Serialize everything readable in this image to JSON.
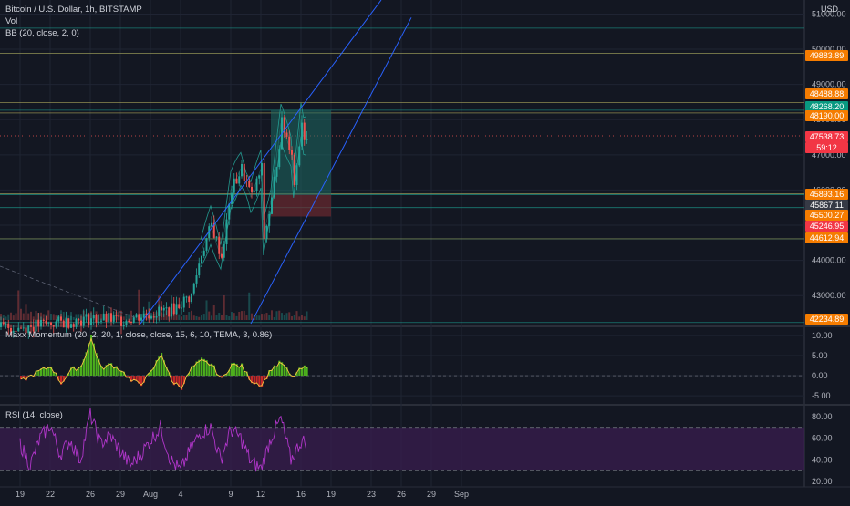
{
  "main_legend": {
    "symbol": "Bitcoin / U.S. Dollar, 1h, BITSTAMP",
    "volume": "Vol",
    "bollinger": "BB (20, close, 2, 0)"
  },
  "currency": "USD",
  "countdown": "59:12",
  "colors": {
    "background": "#131722",
    "grid": "#1f2433",
    "up": "#26a69a",
    "down": "#ef5350",
    "channel": "#2962ff",
    "teal_line": "#1c9b8e",
    "orange_level": "#ef8b27",
    "long_profit": "#1e6a63",
    "long_loss": "#6b2a2f",
    "momentum_up": "#4caf1d",
    "momentum_down": "#c62828",
    "momentum_line": "#f5c842",
    "rsi_line": "#b036c9",
    "rsi_band": "#3a1e4f"
  },
  "price_tags": [
    {
      "label": "49883.89",
      "color": "#f57c00"
    },
    {
      "label": "48488.88",
      "color": "#f57c00"
    },
    {
      "label": "48268.20",
      "color": "#089981"
    },
    {
      "label": "48190.00",
      "color": "#f57c00"
    },
    {
      "label": "47538.73",
      "color": "#f23645"
    },
    {
      "label": "45893.16",
      "color": "#f57c00"
    },
    {
      "label": "45867.11",
      "color": "#363a45"
    },
    {
      "label": "45500.27",
      "color": "#f57c00"
    },
    {
      "label": "45246.95",
      "color": "#f23645"
    },
    {
      "label": "44612.94",
      "color": "#f57c00"
    },
    {
      "label": "42234.89",
      "color": "#f57c00"
    }
  ],
  "momentum_legend": "Maxx Momentum (20, 2, 20, 1, close, close, 15, 6, 10, TEMA, 3, 0.86)",
  "rsi_legend": "RSI (14, close)",
  "chart_data": [
    {
      "type": "candlestick",
      "title": "Bitcoin / U.S. Dollar, 1h, BITSTAMP",
      "ylabel": "USD",
      "y_ticks": [
        "51000.00",
        "50000.00",
        "49000.00",
        "48000.00",
        "47000.00",
        "46000.00",
        "45000.00",
        "44000.00",
        "43000.00"
      ],
      "x_ticks": [
        "19",
        "22",
        "26",
        "29",
        "Aug",
        "4",
        "9",
        "12",
        "16",
        "19",
        "23",
        "26",
        "29",
        "Sep"
      ],
      "ylim": [
        42150,
        51400
      ],
      "last_price": 47538.73,
      "horizontal_levels": [
        50600,
        49883.89,
        48488.88,
        48268.2,
        48190.0,
        45893.16,
        45867.11,
        45500.27,
        44612.94,
        42234.89
      ],
      "channel_upper": [
        [
          "Jul 31",
          42200
        ],
        [
          "Aug 24",
          51400
        ]
      ],
      "channel_lower": [
        [
          "Aug 11",
          42200
        ],
        [
          "Aug 27",
          50900
        ]
      ],
      "long_position": {
        "start": "Aug 13",
        "end": "Aug 19",
        "entry": 45867.11,
        "target": 48268.2,
        "stop": 45246.95
      },
      "price_path": [
        [
          "Jul 19",
          42100
        ],
        [
          "Jul 22",
          42200
        ],
        [
          "Jul 26",
          42350
        ],
        [
          "Jul 29",
          42300
        ],
        [
          "Aug 1",
          42500
        ],
        [
          "Aug 3",
          42600
        ],
        [
          "Aug 5",
          43000
        ],
        [
          "Aug 6",
          44200
        ],
        [
          "Aug 7",
          45000
        ],
        [
          "Aug 8",
          44100
        ],
        [
          "Aug 9",
          46000
        ],
        [
          "Aug 10",
          46600
        ],
        [
          "Aug 11",
          45800
        ],
        [
          "Aug 12",
          46600
        ],
        [
          "Aug 12",
          44300
        ],
        [
          "Aug 13",
          45700
        ],
        [
          "Aug 14",
          47900
        ],
        [
          "Aug 15",
          47100
        ],
        [
          "Aug 15",
          45500
        ],
        [
          "Aug 16",
          48000
        ],
        [
          "Aug 16",
          47539
        ]
      ]
    },
    {
      "type": "area",
      "title": "Maxx Momentum (20, 2, 20, 1, close, close, 15, 6, 10, TEMA, 3, 0.86)",
      "y_ticks": [
        "10.00",
        "5.00",
        "0.00",
        "-5.00"
      ],
      "ylim": [
        -7,
        12
      ],
      "values": [
        [
          "Jul 19",
          -1.5
        ],
        [
          "Jul 21",
          1.5
        ],
        [
          "Jul 22",
          2.5
        ],
        [
          "Jul 23",
          -2
        ],
        [
          "Jul 24",
          1.5
        ],
        [
          "Jul 25",
          2.5
        ],
        [
          "Jul 26",
          10
        ],
        [
          "Jul 27",
          2
        ],
        [
          "Jul 28",
          3
        ],
        [
          "Jul 29",
          1.5
        ],
        [
          "Jul 30",
          -1.5
        ],
        [
          "Jul 31",
          -2
        ],
        [
          "Aug 1",
          1
        ],
        [
          "Aug 2",
          6
        ],
        [
          "Aug 3",
          -1.5
        ],
        [
          "Aug 4",
          -3
        ],
        [
          "Aug 5",
          2
        ],
        [
          "Aug 6",
          4
        ],
        [
          "Aug 7",
          3
        ],
        [
          "Aug 8",
          -1
        ],
        [
          "Aug 9",
          3
        ],
        [
          "Aug 10",
          2.5
        ],
        [
          "Aug 11",
          -1.5
        ],
        [
          "Aug 12",
          -2.5
        ],
        [
          "Aug 13",
          2
        ],
        [
          "Aug 14",
          3.5
        ],
        [
          "Aug 15",
          -0.5
        ],
        [
          "Aug 16",
          2
        ]
      ]
    },
    {
      "type": "line",
      "title": "RSI (14, close)",
      "y_ticks": [
        "80.00",
        "60.00",
        "40.00",
        "20.00"
      ],
      "ylim": [
        15,
        90
      ],
      "band": [
        30,
        70
      ],
      "values": [
        [
          "Jul 19",
          55
        ],
        [
          "Jul 20",
          35
        ],
        [
          "Jul 21",
          60
        ],
        [
          "Jul 22",
          72
        ],
        [
          "Jul 23",
          45
        ],
        [
          "Jul 24",
          58
        ],
        [
          "Jul 25",
          40
        ],
        [
          "Jul 26",
          82
        ],
        [
          "Jul 27",
          55
        ],
        [
          "Jul 28",
          62
        ],
        [
          "Jul 29",
          48
        ],
        [
          "Jul 30",
          35
        ],
        [
          "Jul 31",
          45
        ],
        [
          "Aug 1",
          58
        ],
        [
          "Aug 2",
          70
        ],
        [
          "Aug 3",
          40
        ],
        [
          "Aug 4",
          30
        ],
        [
          "Aug 5",
          50
        ],
        [
          "Aug 6",
          65
        ],
        [
          "Aug 7",
          70
        ],
        [
          "Aug 8",
          40
        ],
        [
          "Aug 9",
          68
        ],
        [
          "Aug 10",
          60
        ],
        [
          "Aug 11",
          38
        ],
        [
          "Aug 12",
          32
        ],
        [
          "Aug 13",
          60
        ],
        [
          "Aug 14",
          78
        ],
        [
          "Aug 15",
          40
        ],
        [
          "Aug 16",
          57
        ]
      ]
    }
  ]
}
